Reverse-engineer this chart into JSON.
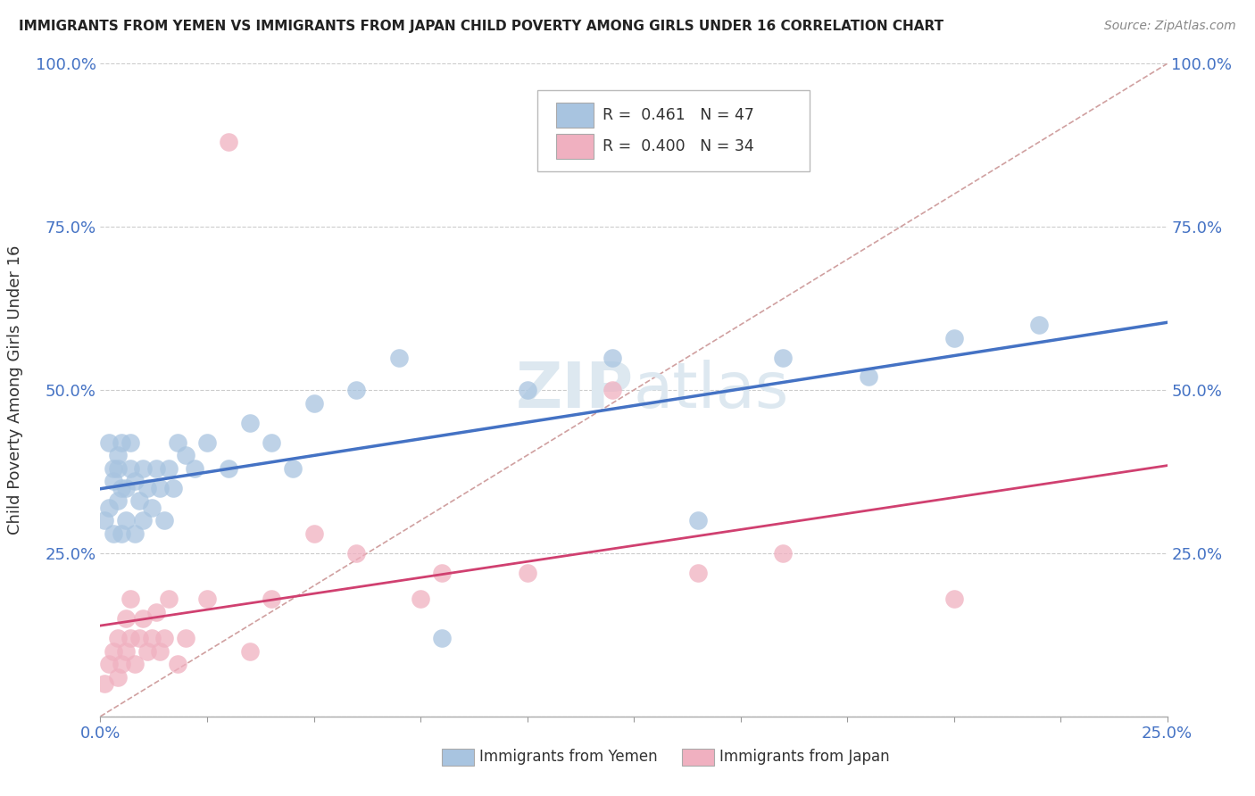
{
  "title": "IMMIGRANTS FROM YEMEN VS IMMIGRANTS FROM JAPAN CHILD POVERTY AMONG GIRLS UNDER 16 CORRELATION CHART",
  "source": "Source: ZipAtlas.com",
  "ylabel": "Child Poverty Among Girls Under 16",
  "xlim": [
    0.0,
    0.25
  ],
  "ylim": [
    0.0,
    1.0
  ],
  "ytick_vals": [
    0.0,
    0.25,
    0.5,
    0.75,
    1.0
  ],
  "ytick_labels_left": [
    "",
    "25.0%",
    "50.0%",
    "75.0%",
    "100.0%"
  ],
  "ytick_labels_right": [
    "",
    "25.0%",
    "50.0%",
    "75.0%",
    "100.0%"
  ],
  "xtick_vals": [
    0.0,
    0.25
  ],
  "xtick_labels": [
    "0.0%",
    "25.0%"
  ],
  "blue_color": "#a8c4e0",
  "pink_color": "#f0b0c0",
  "blue_line_color": "#4472c4",
  "pink_line_color": "#d04070",
  "diagonal_color": "#d0a0a0",
  "watermark_color": "#dde8f0",
  "legend_blue_label": "R =  0.461   N = 47",
  "legend_pink_label": "R =  0.400   N = 34",
  "bottom_label_yemen": "Immigrants from Yemen",
  "bottom_label_japan": "Immigrants from Japan",
  "tick_color": "#4472c4",
  "yemen_x": [
    0.001,
    0.002,
    0.002,
    0.003,
    0.003,
    0.003,
    0.004,
    0.004,
    0.004,
    0.005,
    0.005,
    0.005,
    0.006,
    0.006,
    0.007,
    0.007,
    0.008,
    0.008,
    0.009,
    0.01,
    0.01,
    0.011,
    0.012,
    0.013,
    0.014,
    0.015,
    0.016,
    0.017,
    0.018,
    0.02,
    0.022,
    0.025,
    0.03,
    0.035,
    0.04,
    0.045,
    0.05,
    0.06,
    0.07,
    0.08,
    0.1,
    0.12,
    0.14,
    0.16,
    0.18,
    0.2,
    0.22
  ],
  "yemen_y": [
    0.3,
    0.32,
    0.42,
    0.36,
    0.28,
    0.38,
    0.4,
    0.33,
    0.38,
    0.35,
    0.28,
    0.42,
    0.3,
    0.35,
    0.38,
    0.42,
    0.36,
    0.28,
    0.33,
    0.3,
    0.38,
    0.35,
    0.32,
    0.38,
    0.35,
    0.3,
    0.38,
    0.35,
    0.42,
    0.4,
    0.38,
    0.42,
    0.38,
    0.45,
    0.42,
    0.38,
    0.48,
    0.5,
    0.55,
    0.12,
    0.5,
    0.55,
    0.3,
    0.55,
    0.52,
    0.58,
    0.6
  ],
  "japan_x": [
    0.001,
    0.002,
    0.003,
    0.004,
    0.004,
    0.005,
    0.006,
    0.006,
    0.007,
    0.007,
    0.008,
    0.009,
    0.01,
    0.011,
    0.012,
    0.013,
    0.014,
    0.015,
    0.016,
    0.018,
    0.02,
    0.025,
    0.03,
    0.035,
    0.04,
    0.05,
    0.06,
    0.075,
    0.08,
    0.1,
    0.12,
    0.14,
    0.16,
    0.2
  ],
  "japan_y": [
    0.05,
    0.08,
    0.1,
    0.06,
    0.12,
    0.08,
    0.15,
    0.1,
    0.12,
    0.18,
    0.08,
    0.12,
    0.15,
    0.1,
    0.12,
    0.16,
    0.1,
    0.12,
    0.18,
    0.08,
    0.12,
    0.18,
    0.88,
    0.1,
    0.18,
    0.28,
    0.25,
    0.18,
    0.22,
    0.22,
    0.5,
    0.22,
    0.25,
    0.18
  ]
}
